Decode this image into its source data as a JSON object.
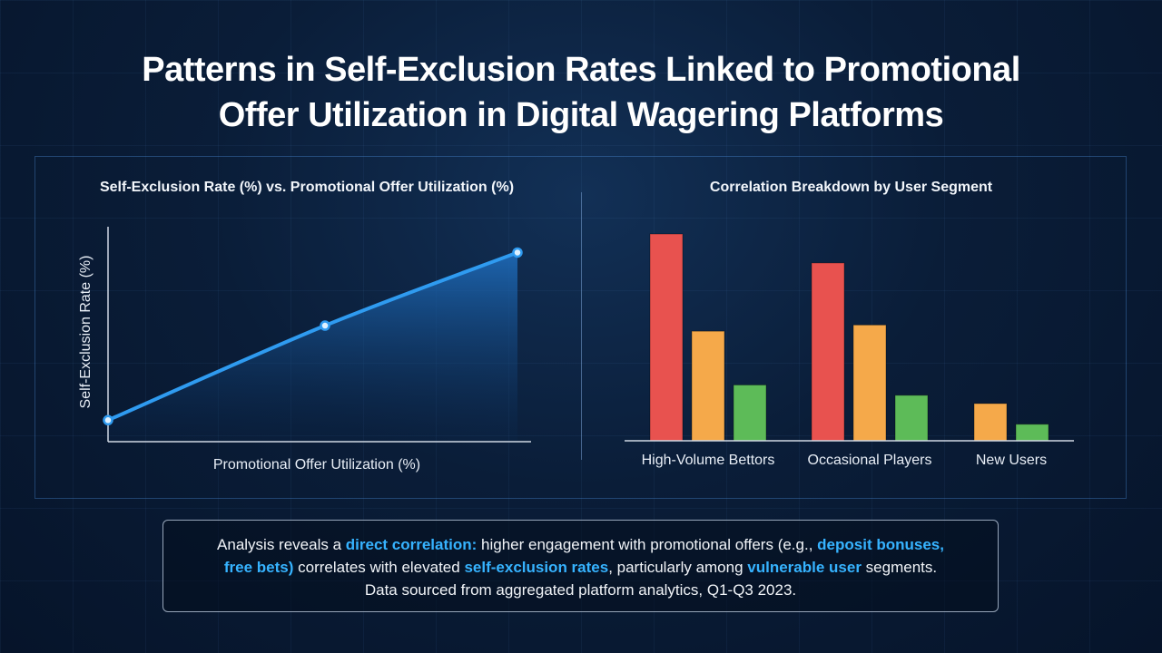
{
  "title": {
    "line1": "Patterns in Self-Exclusion Rates Linked to Promotional",
    "line2": "Offer Utilization in Digital Wagering Platforms"
  },
  "chart_data": [
    {
      "type": "line",
      "title": "Self-Exclusion Rate (%) vs. Promotional Offer Utilization (%)",
      "xlabel": "Promotional Offer Utilization (%)",
      "ylabel": "Self-Exclusion Rate (%)",
      "series": [
        {
          "points": [
            {
              "x": 0,
              "y": 10
            },
            {
              "x": 53,
              "y": 54
            },
            {
              "x": 100,
              "y": 88
            }
          ]
        }
      ],
      "xlim": [
        0,
        100
      ],
      "ylim": [
        0,
        100
      ],
      "fill_under": true,
      "line_color": "#2f9bf0",
      "grid": false
    },
    {
      "type": "bar",
      "title": "Correlation Breakdown by User Segment",
      "categories": [
        "High-Volume Bettors",
        "Occasional Players",
        "New Users"
      ],
      "series": [
        {
          "values": [
            100,
            86,
            0
          ],
          "color": "#e8524f"
        },
        {
          "values": [
            53,
            56,
            18
          ],
          "color": "#f5a94a"
        },
        {
          "values": [
            27,
            22,
            8
          ],
          "color": "#5dbb58"
        }
      ],
      "ylim": [
        0,
        100
      ],
      "grid": false
    }
  ],
  "insight": {
    "t1": "Analysis reveals a ",
    "h1": "direct correlation:",
    "t2": " higher engagement with promotional offers (e.g., ",
    "h2": "deposit bonuses,",
    "h3": "free bets)",
    "t3": " correlates with elevated ",
    "h4": "self-exclusion rates",
    "t4": ", particularly among ",
    "h5": "vulnerable user",
    "t5": " segments.",
    "line3": "Data sourced from aggregated platform analytics, Q1-Q3 2023."
  }
}
